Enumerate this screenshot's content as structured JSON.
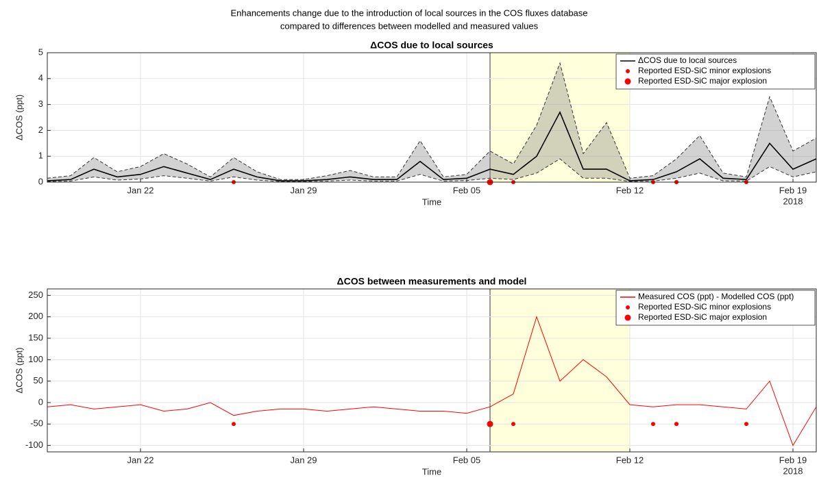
{
  "figure_title": [
    "Enhancements change due to the introduction of local sources in the COS fluxes database",
    "compared to differences between modelled and measured values"
  ],
  "chart_data": [
    {
      "type": "line",
      "title": "ΔCOS due to local sources",
      "xlabel": "Time",
      "ylabel": "ΔCOS (ppt)",
      "x_year": "2018",
      "x": [
        "2018-01-18",
        "2018-01-19",
        "2018-01-20",
        "2018-01-21",
        "2018-01-22",
        "2018-01-23",
        "2018-01-24",
        "2018-01-25",
        "2018-01-26",
        "2018-01-27",
        "2018-01-28",
        "2018-01-29",
        "2018-01-30",
        "2018-01-31",
        "2018-02-01",
        "2018-02-02",
        "2018-02-03",
        "2018-02-04",
        "2018-02-05",
        "2018-02-06",
        "2018-02-07",
        "2018-02-08",
        "2018-02-09",
        "2018-02-10",
        "2018-02-11",
        "2018-02-12",
        "2018-02-13",
        "2018-02-14",
        "2018-02-15",
        "2018-02-16",
        "2018-02-17",
        "2018-02-18",
        "2018-02-19",
        "2018-02-20"
      ],
      "series": [
        {
          "name": "ΔCOS due to local sources",
          "color": "#000000",
          "values": [
            0.05,
            0.1,
            0.5,
            0.2,
            0.3,
            0.6,
            0.35,
            0.1,
            0.5,
            0.2,
            0.05,
            0.05,
            0.1,
            0.2,
            0.1,
            0.1,
            0.8,
            0.1,
            0.15,
            0.5,
            0.3,
            1.0,
            2.7,
            0.5,
            0.5,
            0.05,
            0.1,
            0.4,
            0.9,
            0.15,
            0.1,
            1.5,
            0.5,
            0.9
          ],
          "upper": [
            0.15,
            0.25,
            0.95,
            0.4,
            0.6,
            1.1,
            0.7,
            0.2,
            0.95,
            0.4,
            0.1,
            0.1,
            0.25,
            0.45,
            0.2,
            0.2,
            1.6,
            0.2,
            0.3,
            1.2,
            0.7,
            2.2,
            4.6,
            1.1,
            2.3,
            0.15,
            0.25,
            0.9,
            1.8,
            0.35,
            0.2,
            3.3,
            1.2,
            1.7
          ],
          "lower": [
            0.02,
            0.04,
            0.2,
            0.08,
            0.12,
            0.25,
            0.15,
            0.04,
            0.2,
            0.08,
            0.02,
            0.02,
            0.04,
            0.08,
            0.04,
            0.04,
            0.3,
            0.04,
            0.06,
            0.15,
            0.1,
            0.35,
            0.9,
            0.15,
            0.15,
            0.02,
            0.04,
            0.15,
            0.35,
            0.05,
            0.04,
            0.6,
            0.2,
            0.4
          ]
        }
      ],
      "events": [
        {
          "name": "Reported ESD-SiC minor explosions",
          "color": "#ff0000",
          "marker": "small",
          "x": [
            "2018-01-26",
            "2018-02-06",
            "2018-02-06",
            "2018-02-07",
            "2018-02-13",
            "2018-02-14",
            "2018-02-14",
            "2018-02-17"
          ],
          "values": [
            0,
            0,
            0,
            0,
            0,
            0,
            0,
            0
          ]
        },
        {
          "name": "Reported ESD-SiC major explosion",
          "color": "#ff0000",
          "marker": "large",
          "x": [
            "2018-02-06"
          ],
          "values": [
            0
          ]
        }
      ],
      "highlight": {
        "x": [
          "2018-02-06",
          "2018-02-12"
        ],
        "color": "#ffffdc"
      },
      "xlim": [
        "2018-01-18",
        "2018-02-20"
      ],
      "xticks": [
        {
          "value": "2018-01-22",
          "label": "Jan 22"
        },
        {
          "value": "2018-01-29",
          "label": "Jan 29"
        },
        {
          "value": "2018-02-05",
          "label": "Feb 05"
        },
        {
          "value": "2018-02-12",
          "label": "Feb 12"
        },
        {
          "value": "2018-02-19",
          "label": "Feb 19"
        }
      ],
      "ylim": [
        0,
        5
      ],
      "yticks": [
        0,
        1,
        2,
        3,
        4,
        5
      ],
      "grid": true,
      "legend": "upper right"
    },
    {
      "type": "line",
      "title": "ΔCOS between measurements and model",
      "xlabel": "Time",
      "ylabel": "ΔCOS (ppt)",
      "x_year": "2018",
      "x": [
        "2018-01-18",
        "2018-01-19",
        "2018-01-20",
        "2018-01-21",
        "2018-01-22",
        "2018-01-23",
        "2018-01-24",
        "2018-01-25",
        "2018-01-26",
        "2018-01-27",
        "2018-01-28",
        "2018-01-29",
        "2018-01-30",
        "2018-01-31",
        "2018-02-01",
        "2018-02-02",
        "2018-02-03",
        "2018-02-04",
        "2018-02-05",
        "2018-02-06",
        "2018-02-07",
        "2018-02-08",
        "2018-02-09",
        "2018-02-10",
        "2018-02-11",
        "2018-02-12",
        "2018-02-13",
        "2018-02-14",
        "2018-02-15",
        "2018-02-16",
        "2018-02-17",
        "2018-02-18",
        "2018-02-19",
        "2018-02-20"
      ],
      "series": [
        {
          "name": "Measured COS (ppt) - Modelled COS (ppt)",
          "color": "#ff0000",
          "values": [
            -10,
            -5,
            -15,
            -10,
            -5,
            -20,
            -15,
            0,
            -30,
            -20,
            -15,
            -15,
            -20,
            -15,
            -10,
            -15,
            -20,
            -20,
            -25,
            -10,
            20,
            200,
            50,
            100,
            60,
            -5,
            -10,
            -5,
            -5,
            -10,
            -15,
            50,
            -100,
            -10
          ]
        }
      ],
      "events": [
        {
          "name": "Reported ESD-SiC minor explosions",
          "color": "#ff0000",
          "marker": "small",
          "x": [
            "2018-01-26",
            "2018-02-06",
            "2018-02-06",
            "2018-02-07",
            "2018-02-13",
            "2018-02-14",
            "2018-02-14",
            "2018-02-17"
          ],
          "values": [
            -50,
            -50,
            -50,
            -50,
            -50,
            -50,
            -50,
            -50
          ]
        },
        {
          "name": "Reported ESD-SiC major explosion",
          "color": "#ff0000",
          "marker": "large",
          "x": [
            "2018-02-06"
          ],
          "values": [
            -50
          ]
        }
      ],
      "highlight": {
        "x": [
          "2018-02-06",
          "2018-02-12"
        ],
        "color": "#ffffdc"
      },
      "xlim": [
        "2018-01-18",
        "2018-02-20"
      ],
      "xticks": [
        {
          "value": "2018-01-22",
          "label": "Jan 22"
        },
        {
          "value": "2018-01-29",
          "label": "Jan 29"
        },
        {
          "value": "2018-02-05",
          "label": "Feb 05"
        },
        {
          "value": "2018-02-12",
          "label": "Feb 12"
        },
        {
          "value": "2018-02-19",
          "label": "Feb 19"
        }
      ],
      "ylim": [
        -115,
        265
      ],
      "yticks": [
        -100,
        -50,
        0,
        50,
        100,
        150,
        200,
        250
      ],
      "grid": true,
      "legend": "upper right"
    }
  ]
}
